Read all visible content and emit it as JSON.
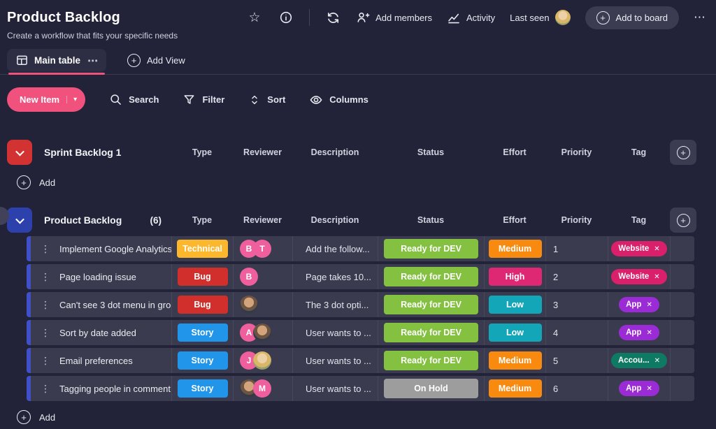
{
  "header": {
    "title": "Product Backlog",
    "subtitle": "Create a workflow that fits your specific needs",
    "add_members": "Add members",
    "activity": "Activity",
    "last_seen": "Last seen",
    "add_to_board": "Add to board"
  },
  "tabs": {
    "main_table": "Main table",
    "add_view": "Add View"
  },
  "toolbar": {
    "new_item": "New Item",
    "search": "Search",
    "filter": "Filter",
    "sort": "Sort",
    "columns": "Columns"
  },
  "columns": [
    "Type",
    "Reviewer",
    "Description",
    "Status",
    "Effort",
    "Priority",
    "Tag"
  ],
  "icons": {
    "star": "☆",
    "plus": "+",
    "caret_down": "▾",
    "drag": "⋮",
    "ellipsis": "⋯",
    "close": "✕"
  },
  "colors": {
    "accent_pink": "#f0527d",
    "group_red": "#d23231",
    "group_blue": "#2c41ab",
    "row_bar_blue": "#4050c8"
  },
  "groups": [
    {
      "title": "Sprint Backlog 1",
      "add_label": "Add"
    },
    {
      "title": "Product Backlog",
      "count": "(6)",
      "add_label": "Add",
      "rows": [
        {
          "name": "Implement Google Analytics",
          "type": {
            "label": "Technical",
            "bg": "#fcb72d"
          },
          "reviewers": [
            {
              "label": "B",
              "bg": "#ef5f9d"
            },
            {
              "label": "T",
              "bg": "#ef5f9d"
            }
          ],
          "description": "Add the follow...",
          "status": {
            "label": "Ready for DEV",
            "bg": "#84c141"
          },
          "effort": {
            "label": "Medium",
            "bg": "#f98a10"
          },
          "priority": "1",
          "tag": {
            "label": "Website",
            "bg": "#da1f6b"
          }
        },
        {
          "name": "Page loading issue",
          "type": {
            "label": "Bug",
            "bg": "#d12f2b"
          },
          "reviewers": [
            {
              "label": "B",
              "bg": "#ef5f9d"
            }
          ],
          "description": "Page takes 10...",
          "status": {
            "label": "Ready for DEV",
            "bg": "#84c141"
          },
          "effort": {
            "label": "High",
            "bg": "#df2874"
          },
          "priority": "2",
          "tag": {
            "label": "Website",
            "bg": "#da1f6b"
          }
        },
        {
          "name": "Can't see 3 dot menu in group",
          "type": {
            "label": "Bug",
            "bg": "#d12f2b"
          },
          "reviewers": [
            {
              "label": "",
              "bg": "radial-gradient(circle at 50% 38%, #d3a47c 0 34%, #6b5442 35% 58%, #343a47 59% 100%)"
            }
          ],
          "description": "The 3 dot opti...",
          "status": {
            "label": "Ready for DEV",
            "bg": "#84c141"
          },
          "effort": {
            "label": "Low",
            "bg": "#13a5b8"
          },
          "priority": "3",
          "tag": {
            "label": "App",
            "bg": "#9a2bd5"
          }
        },
        {
          "name": "Sort by date added",
          "type": {
            "label": "Story",
            "bg": "#2095e9"
          },
          "reviewers": [
            {
              "label": "A",
              "bg": "#ef5f9d"
            },
            {
              "label": "",
              "bg": "radial-gradient(circle at 50% 38%, #d3a47c 0 34%, #6b5442 35% 58%, #343a47 59% 100%)"
            }
          ],
          "description": "User wants to ...",
          "status": {
            "label": "Ready for DEV",
            "bg": "#84c141"
          },
          "effort": {
            "label": "Low",
            "bg": "#13a5b8"
          },
          "priority": "4",
          "tag": {
            "label": "App",
            "bg": "#9a2bd5"
          }
        },
        {
          "name": "Email preferences",
          "type": {
            "label": "Story",
            "bg": "#2095e9"
          },
          "reviewers": [
            {
              "label": "J",
              "bg": "#ef5f9d"
            },
            {
              "label": "",
              "bg": "radial-gradient(circle at 50% 38%, #ecd0a6 0 34%, #d9b668 35% 62%, #97a06b 63% 100%)"
            }
          ],
          "description": "User wants to ...",
          "status": {
            "label": "Ready for DEV",
            "bg": "#84c141"
          },
          "effort": {
            "label": "Medium",
            "bg": "#f98a10"
          },
          "priority": "5",
          "tag": {
            "label": "Accou...",
            "bg": "#0f7a63"
          }
        },
        {
          "name": "Tagging people in comment...",
          "type": {
            "label": "Story",
            "bg": "#2095e9"
          },
          "reviewers": [
            {
              "label": "",
              "bg": "radial-gradient(circle at 50% 38%, #d3a47c 0 34%, #6b5442 35% 58%, #343a47 59% 100%)"
            },
            {
              "label": "M",
              "bg": "#ef5f9d"
            }
          ],
          "description": "User wants to ...",
          "status": {
            "label": "On Hold",
            "bg": "#9d9d9d"
          },
          "effort": {
            "label": "Medium",
            "bg": "#f98a10"
          },
          "priority": "6",
          "tag": {
            "label": "App",
            "bg": "#9a2bd5"
          }
        }
      ]
    }
  ]
}
